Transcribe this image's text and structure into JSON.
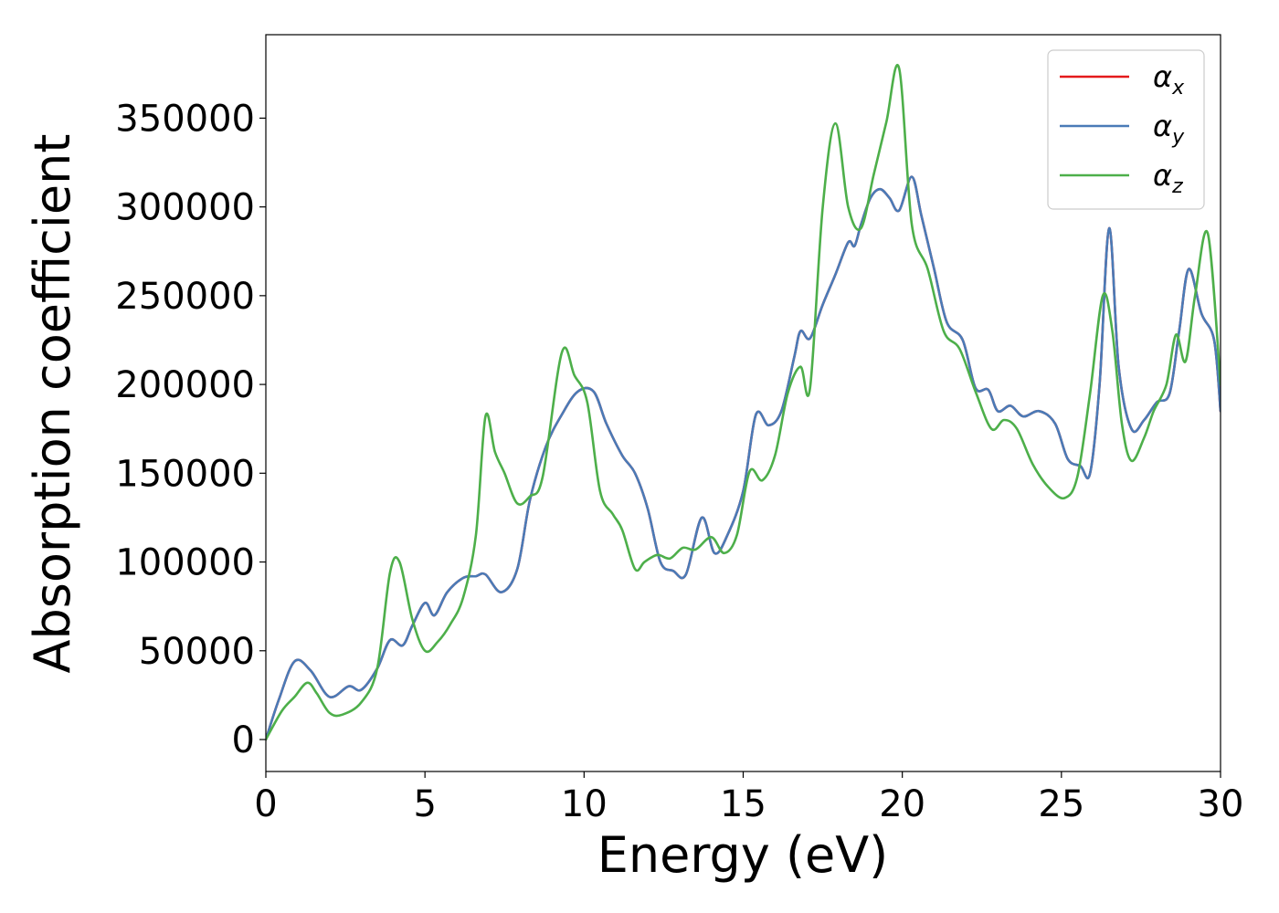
{
  "chart_data": {
    "type": "line",
    "xlabel": "Energy (eV)",
    "ylabel": "Absorption coefficient",
    "xlim": [
      0,
      30
    ],
    "ylim": [
      -18000,
      397000
    ],
    "xticks": [
      0,
      5,
      10,
      15,
      20,
      25,
      30
    ],
    "xtick_labels": [
      "0",
      "5",
      "10",
      "15",
      "20",
      "25",
      "30"
    ],
    "yticks": [
      0,
      50000,
      100000,
      150000,
      200000,
      250000,
      300000,
      350000
    ],
    "ytick_labels": [
      "0",
      "50000",
      "100000",
      "150000",
      "200000",
      "250000",
      "300000",
      "350000"
    ],
    "grid": false,
    "legend_position": "top-right",
    "series": [
      {
        "name": "α",
        "subscript": "x",
        "color": "#e41a1c",
        "x": [
          0,
          0.4,
          0.9,
          1.4,
          2.0,
          2.6,
          3.0,
          3.5,
          3.9,
          4.3,
          4.6,
          5.0,
          5.3,
          5.7,
          6.2,
          6.6,
          6.9,
          7.4,
          7.9,
          8.3,
          8.8,
          9.3,
          9.8,
          10.3,
          10.7,
          11.2,
          11.6,
          12.0,
          12.4,
          12.8,
          13.2,
          13.7,
          14.1,
          14.5,
          15.0,
          15.4,
          15.8,
          16.2,
          16.6,
          16.8,
          17.1,
          17.5,
          17.9,
          18.3,
          18.5,
          18.7,
          19.0,
          19.3,
          19.6,
          19.9,
          20.3,
          20.6,
          21.0,
          21.4,
          21.9,
          22.3,
          22.7,
          23.0,
          23.4,
          23.8,
          24.3,
          24.8,
          25.2,
          25.6,
          25.9,
          26.2,
          26.5,
          26.8,
          27.2,
          27.6,
          28.0,
          28.4,
          28.7,
          29.0,
          29.4,
          29.8,
          30.0
        ],
        "y": [
          0,
          22000,
          44000,
          39000,
          24000,
          30000,
          28000,
          40000,
          56000,
          53000,
          64000,
          77000,
          70000,
          83000,
          91000,
          92000,
          93000,
          83000,
          96000,
          135000,
          165000,
          183000,
          196000,
          196000,
          178000,
          160000,
          150000,
          130000,
          100000,
          95000,
          93000,
          125000,
          105000,
          115000,
          140000,
          183000,
          177000,
          185000,
          215000,
          230000,
          226000,
          245000,
          262000,
          280000,
          278000,
          290000,
          305000,
          310000,
          305000,
          298000,
          317000,
          295000,
          265000,
          235000,
          225000,
          198000,
          197000,
          185000,
          188000,
          182000,
          185000,
          178000,
          158000,
          154000,
          150000,
          200000,
          288000,
          210000,
          175000,
          180000,
          190000,
          195000,
          230000,
          265000,
          240000,
          225000,
          185000
        ]
      },
      {
        "name": "α",
        "subscript": "y",
        "color": "#4a7bb7",
        "x": [
          0,
          0.4,
          0.9,
          1.4,
          2.0,
          2.6,
          3.0,
          3.5,
          3.9,
          4.3,
          4.6,
          5.0,
          5.3,
          5.7,
          6.2,
          6.6,
          6.9,
          7.4,
          7.9,
          8.3,
          8.8,
          9.3,
          9.8,
          10.3,
          10.7,
          11.2,
          11.6,
          12.0,
          12.4,
          12.8,
          13.2,
          13.7,
          14.1,
          14.5,
          15.0,
          15.4,
          15.8,
          16.2,
          16.6,
          16.8,
          17.1,
          17.5,
          17.9,
          18.3,
          18.5,
          18.7,
          19.0,
          19.3,
          19.6,
          19.9,
          20.3,
          20.6,
          21.0,
          21.4,
          21.9,
          22.3,
          22.7,
          23.0,
          23.4,
          23.8,
          24.3,
          24.8,
          25.2,
          25.6,
          25.9,
          26.2,
          26.5,
          26.8,
          27.2,
          27.6,
          28.0,
          28.4,
          28.7,
          29.0,
          29.4,
          29.8,
          30.0
        ],
        "y": [
          0,
          22000,
          44000,
          39000,
          24000,
          30000,
          28000,
          40000,
          56000,
          53000,
          64000,
          77000,
          70000,
          83000,
          91000,
          92000,
          93000,
          83000,
          96000,
          135000,
          165000,
          183000,
          196000,
          196000,
          178000,
          160000,
          150000,
          130000,
          100000,
          95000,
          93000,
          125000,
          105000,
          115000,
          140000,
          183000,
          177000,
          185000,
          215000,
          230000,
          226000,
          245000,
          262000,
          280000,
          278000,
          290000,
          305000,
          310000,
          305000,
          298000,
          317000,
          295000,
          265000,
          235000,
          225000,
          198000,
          197000,
          185000,
          188000,
          182000,
          185000,
          178000,
          158000,
          154000,
          150000,
          200000,
          288000,
          210000,
          175000,
          180000,
          190000,
          195000,
          230000,
          265000,
          240000,
          225000,
          185000
        ]
      },
      {
        "name": "α",
        "subscript": "z",
        "color": "#4daf4a",
        "x": [
          0,
          0.5,
          0.9,
          1.3,
          1.6,
          2.0,
          2.4,
          3.0,
          3.5,
          3.9,
          4.2,
          4.6,
          5.0,
          5.4,
          5.8,
          6.2,
          6.6,
          6.9,
          7.2,
          7.5,
          7.9,
          8.3,
          8.7,
          9.3,
          9.7,
          10.1,
          10.5,
          10.9,
          11.2,
          11.6,
          11.9,
          12.3,
          12.7,
          13.1,
          13.5,
          14.0,
          14.4,
          14.8,
          15.2,
          15.6,
          16.0,
          16.4,
          16.8,
          17.1,
          17.5,
          17.9,
          18.3,
          18.7,
          19.1,
          19.5,
          19.9,
          20.3,
          20.8,
          21.3,
          21.8,
          22.3,
          22.8,
          23.2,
          23.6,
          24.1,
          24.6,
          25.1,
          25.5,
          25.9,
          26.3,
          26.6,
          26.9,
          27.2,
          27.6,
          27.9,
          28.3,
          28.6,
          28.9,
          29.2,
          29.6,
          30.0
        ],
        "y": [
          0,
          16000,
          24000,
          32000,
          26000,
          15000,
          14000,
          21000,
          40000,
          94000,
          100000,
          68000,
          50000,
          55000,
          65000,
          80000,
          115000,
          182000,
          162000,
          150000,
          133000,
          137000,
          148000,
          218000,
          205000,
          190000,
          140000,
          127000,
          118000,
          96000,
          100000,
          104000,
          102000,
          108000,
          107000,
          114000,
          105000,
          115000,
          151000,
          146000,
          160000,
          195000,
          210000,
          198000,
          300000,
          347000,
          300000,
          288000,
          318000,
          348000,
          378000,
          290000,
          265000,
          230000,
          220000,
          196000,
          175000,
          180000,
          175000,
          155000,
          142000,
          136000,
          148000,
          195000,
          250000,
          230000,
          178000,
          157000,
          170000,
          185000,
          200000,
          228000,
          213000,
          250000,
          285000,
          200000
        ]
      }
    ]
  }
}
